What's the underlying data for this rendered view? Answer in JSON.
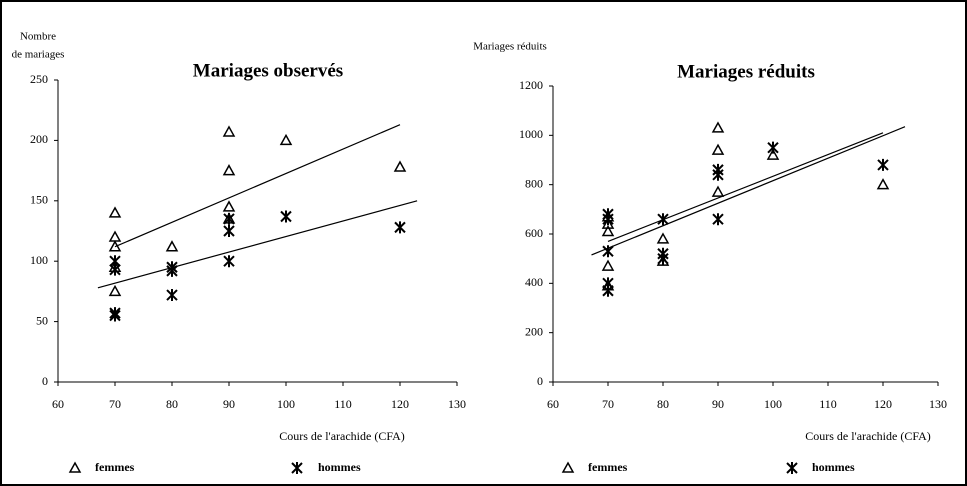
{
  "chart_data": [
    {
      "type": "scatter",
      "title": "Mariages observés",
      "ylabel": [
        "Nombre",
        "de mariages"
      ],
      "xlabel": "Cours de l'arachide (CFA)",
      "xlim": [
        60,
        130
      ],
      "xticks": [
        60,
        70,
        80,
        90,
        100,
        110,
        120,
        130
      ],
      "ylim": [
        0,
        250
      ],
      "yticks": [
        0,
        50,
        100,
        150,
        200,
        250
      ],
      "grid": false,
      "series": [
        {
          "name": "femmes",
          "marker": "triangle",
          "color": "#000000",
          "x": [
            70,
            70,
            70,
            70,
            70,
            80,
            90,
            90,
            90,
            90,
            100,
            120
          ],
          "values": [
            140,
            120,
            112,
            95,
            75,
            112,
            207,
            175,
            145,
            135,
            200,
            178
          ]
        },
        {
          "name": "hommes",
          "marker": "asterisk",
          "color": "#000000",
          "x": [
            70,
            70,
            70,
            70,
            80,
            80,
            80,
            90,
            90,
            90,
            100,
            120
          ],
          "values": [
            100,
            93,
            55,
            57,
            95,
            92,
            72,
            135,
            125,
            100,
            137,
            128
          ]
        }
      ],
      "fits": [
        {
          "x": [
            70,
            120
          ],
          "values": [
            112,
            213
          ]
        },
        {
          "x": [
            67,
            123
          ],
          "values": [
            78,
            150
          ]
        }
      ]
    },
    {
      "type": "scatter",
      "title": "Mariages réduits",
      "ylabel": [
        "Mariages réduits"
      ],
      "xlabel": "Cours de l'arachide (CFA)",
      "xlim": [
        60,
        130
      ],
      "xticks": [
        60,
        70,
        80,
        90,
        100,
        110,
        120,
        130
      ],
      "ylim": [
        0,
        1200
      ],
      "yticks": [
        0,
        200,
        400,
        600,
        800,
        1000,
        1200
      ],
      "grid": false,
      "series": [
        {
          "name": "femmes",
          "marker": "triangle",
          "color": "#000000",
          "x": [
            70,
            70,
            70,
            70,
            70,
            80,
            80,
            90,
            90,
            90,
            100,
            120
          ],
          "values": [
            670,
            640,
            610,
            470,
            390,
            580,
            490,
            1030,
            940,
            770,
            920,
            800
          ]
        },
        {
          "name": "hommes",
          "marker": "asterisk",
          "color": "#000000",
          "x": [
            70,
            70,
            70,
            70,
            70,
            80,
            80,
            80,
            90,
            90,
            90,
            100,
            120
          ],
          "values": [
            680,
            660,
            530,
            400,
            370,
            660,
            520,
            500,
            860,
            840,
            660,
            950,
            880
          ]
        }
      ],
      "fits": [
        {
          "x": [
            67,
            124
          ],
          "values": [
            515,
            1035
          ]
        },
        {
          "x": [
            70,
            120
          ],
          "values": [
            570,
            1010
          ]
        }
      ]
    }
  ]
}
